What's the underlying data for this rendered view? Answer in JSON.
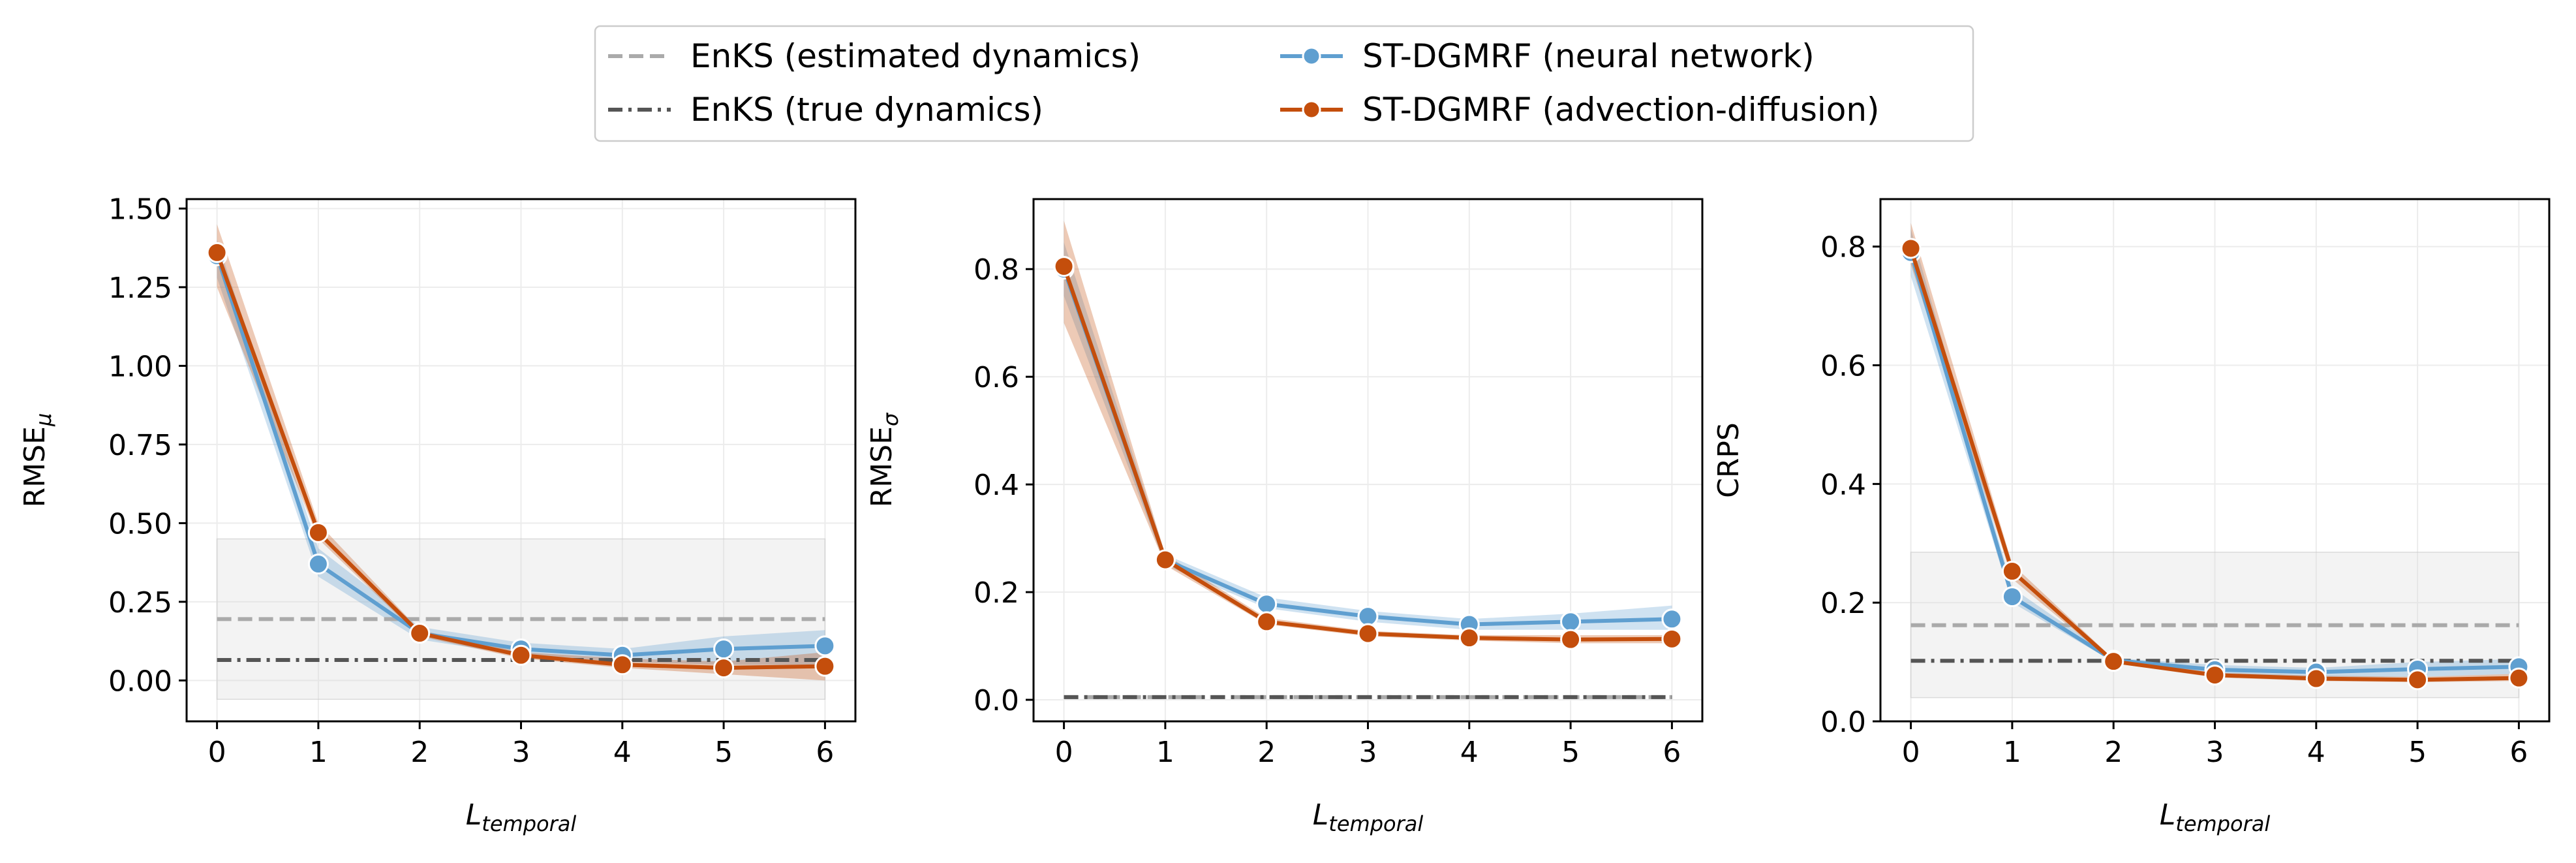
{
  "legend": {
    "entries": [
      {
        "label": "EnKS (estimated dynamics)",
        "color": "#aaaaaa",
        "style": "dashed",
        "marker": false
      },
      {
        "label": "EnKS (true dynamics)",
        "color": "#555555",
        "style": "dashdot",
        "marker": false
      },
      {
        "label": "ST-DGMRF (neural network)",
        "color": "#5f9fd0",
        "style": "solid",
        "marker": true
      },
      {
        "label": "ST-DGMRF (advection-diffusion)",
        "color": "#c44e0c",
        "style": "solid",
        "marker": true
      }
    ]
  },
  "chart_data": [
    {
      "type": "line",
      "xlabel_main": "L",
      "xlabel_sub": "temporal",
      "ylabel_main": "RMSE",
      "ylabel_sub": "μ",
      "x": [
        0,
        1,
        2,
        3,
        4,
        5,
        6
      ],
      "xlim": [
        -0.3,
        6.3
      ],
      "ylim": [
        -0.13,
        1.53
      ],
      "yticks": [
        0.0,
        0.25,
        0.5,
        0.75,
        1.0,
        1.25,
        1.5
      ],
      "ytick_labels": [
        "0.00",
        "0.25",
        "0.50",
        "0.75",
        "1.00",
        "1.25",
        "1.50"
      ],
      "baselines": [
        {
          "name": "EnKS (estimated dynamics)",
          "value": 0.195,
          "band": [
            -0.06,
            0.45
          ],
          "color": "#aaaaaa"
        },
        {
          "name": "EnKS (true dynamics)",
          "value": 0.065,
          "color": "#555555"
        }
      ],
      "series": [
        {
          "name": "ST-DGMRF (neural network)",
          "color": "#5f9fd0",
          "values": [
            1.35,
            0.37,
            0.15,
            0.1,
            0.08,
            0.1,
            0.11
          ],
          "lower": [
            1.28,
            0.33,
            0.13,
            0.08,
            0.06,
            0.05,
            0.05
          ],
          "upper": [
            1.4,
            0.42,
            0.17,
            0.12,
            0.1,
            0.14,
            0.16
          ]
        },
        {
          "name": "ST-DGMRF (advection-diffusion)",
          "color": "#c44e0c",
          "values": [
            1.36,
            0.47,
            0.15,
            0.08,
            0.05,
            0.04,
            0.045
          ],
          "lower": [
            1.25,
            0.45,
            0.14,
            0.07,
            0.04,
            0.02,
            0.0
          ],
          "upper": [
            1.45,
            0.5,
            0.16,
            0.09,
            0.07,
            0.06,
            0.09
          ]
        }
      ]
    },
    {
      "type": "line",
      "xlabel_main": "L",
      "xlabel_sub": "temporal",
      "ylabel_main": "RMSE",
      "ylabel_sub": "σ",
      "x": [
        0,
        1,
        2,
        3,
        4,
        5,
        6
      ],
      "xlim": [
        -0.3,
        6.3
      ],
      "ylim": [
        -0.04,
        0.93
      ],
      "yticks": [
        0.0,
        0.2,
        0.4,
        0.6,
        0.8
      ],
      "ytick_labels": [
        "0.0",
        "0.2",
        "0.4",
        "0.6",
        "0.8"
      ],
      "baselines": [
        {
          "name": "EnKS (estimated dynamics)",
          "value": 0.005,
          "color": "#aaaaaa"
        },
        {
          "name": "EnKS (true dynamics)",
          "value": 0.005,
          "color": "#555555"
        }
      ],
      "series": [
        {
          "name": "ST-DGMRF (neural network)",
          "color": "#5f9fd0",
          "values": [
            0.8,
            0.26,
            0.178,
            0.155,
            0.14,
            0.145,
            0.15
          ],
          "lower": [
            0.75,
            0.25,
            0.17,
            0.145,
            0.13,
            0.13,
            0.13
          ],
          "upper": [
            0.85,
            0.27,
            0.19,
            0.165,
            0.15,
            0.16,
            0.175
          ]
        },
        {
          "name": "ST-DGMRF (advection-diffusion)",
          "color": "#c44e0c",
          "values": [
            0.805,
            0.26,
            0.145,
            0.123,
            0.115,
            0.112,
            0.113
          ],
          "lower": [
            0.7,
            0.25,
            0.14,
            0.118,
            0.11,
            0.105,
            0.105
          ],
          "upper": [
            0.89,
            0.27,
            0.152,
            0.128,
            0.12,
            0.12,
            0.12
          ]
        }
      ]
    },
    {
      "type": "line",
      "xlabel_main": "L",
      "xlabel_sub": "temporal",
      "ylabel_main": "CRPS",
      "ylabel_sub": "",
      "x": [
        0,
        1,
        2,
        3,
        4,
        5,
        6
      ],
      "xlim": [
        -0.3,
        6.3
      ],
      "ylim": [
        0.0,
        0.88
      ],
      "yticks": [
        0.0,
        0.2,
        0.4,
        0.6,
        0.8
      ],
      "ytick_labels": [
        "0.0",
        "0.2",
        "0.4",
        "0.6",
        "0.8"
      ],
      "baselines": [
        {
          "name": "EnKS (estimated dynamics)",
          "value": 0.162,
          "band": [
            0.04,
            0.285
          ],
          "color": "#aaaaaa"
        },
        {
          "name": "EnKS (true dynamics)",
          "value": 0.102,
          "color": "#555555"
        }
      ],
      "series": [
        {
          "name": "ST-DGMRF (neural network)",
          "color": "#5f9fd0",
          "values": [
            0.79,
            0.21,
            0.103,
            0.087,
            0.083,
            0.088,
            0.092
          ],
          "lower": [
            0.75,
            0.2,
            0.1,
            0.08,
            0.075,
            0.075,
            0.08
          ],
          "upper": [
            0.83,
            0.225,
            0.107,
            0.095,
            0.09,
            0.1,
            0.105
          ]
        },
        {
          "name": "ST-DGMRF (advection-diffusion)",
          "color": "#c44e0c",
          "values": [
            0.797,
            0.253,
            0.101,
            0.078,
            0.072,
            0.07,
            0.073
          ],
          "lower": [
            0.77,
            0.24,
            0.098,
            0.074,
            0.068,
            0.066,
            0.068
          ],
          "upper": [
            0.84,
            0.265,
            0.105,
            0.082,
            0.077,
            0.075,
            0.08
          ]
        }
      ]
    }
  ]
}
